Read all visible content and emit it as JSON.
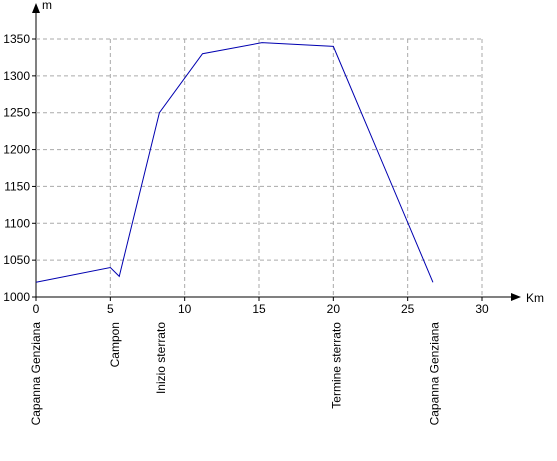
{
  "chart_data": {
    "type": "line",
    "y_label": "m",
    "x_label": "Km",
    "x": [
      0,
      5,
      5.6,
      8.3,
      11.2,
      15.2,
      20,
      26.7
    ],
    "series": [
      {
        "name": null,
        "color": "#0000b0",
        "values": [
          1020,
          1040,
          1028,
          1250,
          1330,
          1345,
          1340,
          1020
        ]
      }
    ],
    "xlim": [
      0,
      30
    ],
    "xticks": [
      0,
      5,
      10,
      15,
      20,
      25,
      30
    ],
    "ylim": [
      1000,
      1350
    ],
    "yticks": [
      1000,
      1050,
      1100,
      1150,
      1200,
      1250,
      1300,
      1350
    ],
    "grid": true,
    "annotations": [
      {
        "text": "Capanna Genziana",
        "x": 0
      },
      {
        "text": "Campon",
        "x": 5.3
      },
      {
        "text": "Inizio sterrato",
        "x": 8.4
      },
      {
        "text": "Termine sterrato",
        "x": 20.2
      },
      {
        "text": "Capanna Genziana",
        "x": 26.8
      }
    ]
  }
}
